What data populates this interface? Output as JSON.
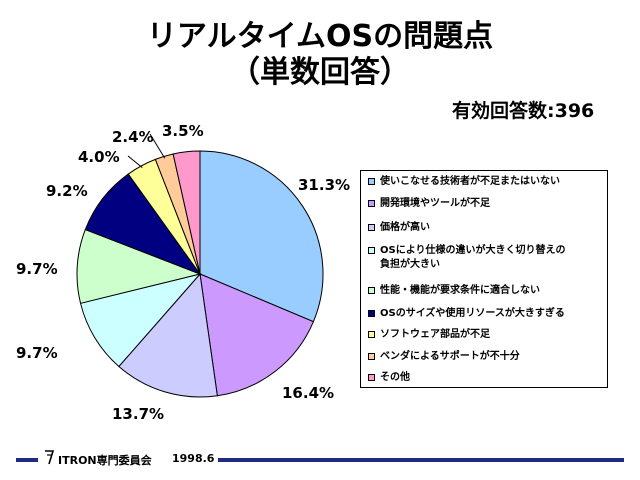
{
  "title": {
    "line1": "リアルタイムOSの問題点",
    "line2": "（単数回答）"
  },
  "respondents": "有効回答数:396",
  "footer": {
    "organization": "ITRON専門委員会",
    "date": "1998.6"
  },
  "chart_data": {
    "type": "pie",
    "start_angle_deg": 0,
    "direction": "clockwise",
    "slices": [
      {
        "label": "使いこなせる技術者が不足またはいない",
        "value": 31.3,
        "value_label": "31.3%",
        "color": "#99ccff"
      },
      {
        "label": "開発環境やツールが不足",
        "value": 16.4,
        "value_label": "16.4%",
        "color": "#cc99ff"
      },
      {
        "label": "価格が高い",
        "value": 13.7,
        "value_label": "13.7%",
        "color": "#ccccff"
      },
      {
        "label": "OSにより仕様の違いが大きく切り替えの負担が大きい",
        "label_lines": [
          "OSにより仕様の違いが大きく切り替えの",
          "負担が大きい"
        ],
        "value": 9.7,
        "value_label": "9.7%",
        "color": "#ccffff"
      },
      {
        "label": "性能・機能が要求条件に適合しない",
        "value": 9.7,
        "value_label": "9.7%",
        "color": "#ccffcc"
      },
      {
        "label": "OSのサイズや使用リソースが大きすぎる",
        "value": 9.2,
        "value_label": "9.2%",
        "color": "#000080"
      },
      {
        "label": "ソフトウェア部品が不足",
        "value": 4.0,
        "value_label": "4.0%",
        "color": "#ffff99"
      },
      {
        "label": "ベンダによるサポートが不十分",
        "value": 2.4,
        "value_label": "2.4%",
        "color": "#ffcc99"
      },
      {
        "label": "その他",
        "value": 3.5,
        "value_label": "3.5%",
        "color": "#ff99cc"
      }
    ],
    "legend_position": "right"
  }
}
